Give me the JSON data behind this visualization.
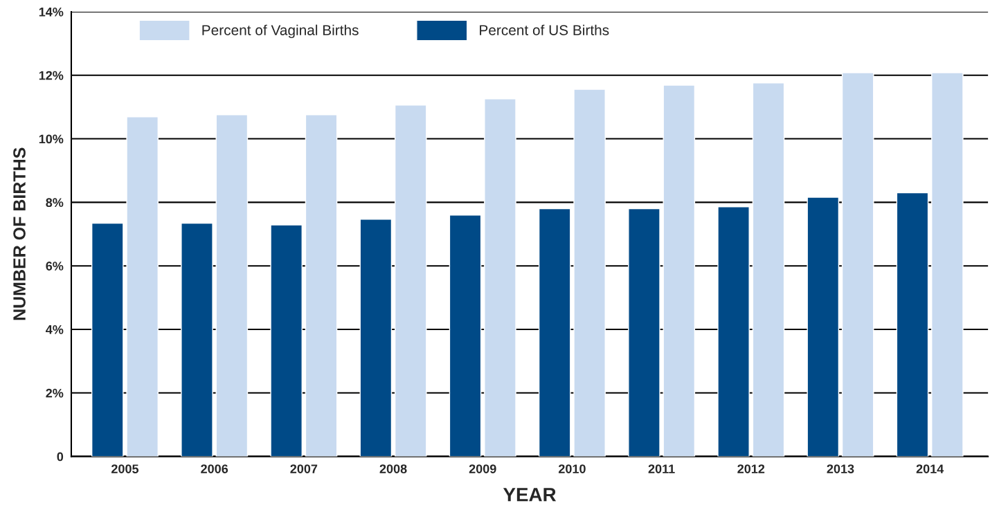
{
  "chart_data": {
    "type": "bar",
    "xlabel": "YEAR",
    "ylabel": "NUMBER OF BIRTHS",
    "categories": [
      "2005",
      "2006",
      "2007",
      "2008",
      "2009",
      "2010",
      "2011",
      "2012",
      "2013",
      "2014"
    ],
    "series": [
      {
        "name": "Percent of US Births",
        "color": "#004a87",
        "values": [
          7.34,
          7.34,
          7.29,
          7.47,
          7.6,
          7.8,
          7.8,
          7.86,
          8.16,
          8.3
        ]
      },
      {
        "name": "Percent of Vaginal Births",
        "color": "#c8daf0",
        "values": [
          10.69,
          10.76,
          10.76,
          11.06,
          11.26,
          11.56,
          11.69,
          11.76,
          12.08,
          12.08
        ]
      }
    ],
    "ylim": [
      0,
      14
    ],
    "yticks": [
      0,
      {
        "value": 2,
        "label": "2%"
      },
      {
        "value": 4,
        "label": "4%"
      },
      {
        "value": 6,
        "label": "6%"
      },
      {
        "value": 8,
        "label": "8%"
      },
      {
        "value": 10,
        "label": "10%"
      },
      {
        "value": 12,
        "label": "12%"
      },
      {
        "value": 14,
        "label": "14%"
      }
    ],
    "grid": "y",
    "legend": "top left"
  }
}
